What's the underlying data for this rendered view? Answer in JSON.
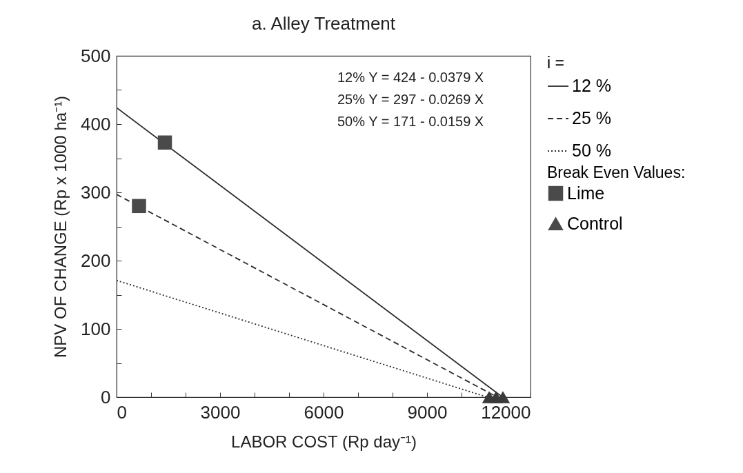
{
  "chart_data": {
    "type": "line",
    "title": "a. Alley Treatment",
    "xlabel": "LABOR COST (Rp day⁻¹)",
    "ylabel": "NPV OF CHANGE (Rp x 1000 ha⁻¹)",
    "legend_title": "i =",
    "legend": "right",
    "xlim": [
      0,
      12000
    ],
    "ylim": [
      0,
      500
    ],
    "xticks": [
      0,
      {
        "value": 1000,
        "label": null
      },
      {
        "value": 2000,
        "label": null
      },
      {
        "value": 3000,
        "label": "3000"
      },
      {
        "value": 4000,
        "label": null
      },
      {
        "value": 5000,
        "label": null
      },
      {
        "value": 6000,
        "label": "6000"
      },
      {
        "value": 7000,
        "label": null
      },
      {
        "value": 8000,
        "label": null
      },
      {
        "value": 9000,
        "label": "9000"
      },
      {
        "value": 10000,
        "label": null
      },
      {
        "value": 11000,
        "label": null
      },
      {
        "value": 12000,
        "label": "12000"
      }
    ],
    "yticks": [
      0,
      {
        "value": 50,
        "label": null
      },
      100,
      {
        "value": 150,
        "label": null
      },
      200,
      {
        "value": 250,
        "label": null
      },
      300,
      {
        "value": 350,
        "label": null
      },
      400,
      {
        "value": 450,
        "label": null
      },
      500
    ],
    "annotations": [
      "12%  Y = 424 - 0.0379 X",
      "25%  Y = 297 - 0.0269 X",
      "50%  Y = 171 - 0.0159 X",
      "Break Even Values:"
    ],
    "series": [
      {
        "name": "12 %",
        "type": "line",
        "line_style": "solid",
        "marker": "none",
        "color": "#2b2b2b",
        "x": [
          0,
          11190
        ],
        "values": [
          424,
          0
        ]
      },
      {
        "name": "25 %",
        "type": "line",
        "line_style": "dashed",
        "marker": "none",
        "color": "#2b2b2b",
        "x": [
          0,
          11040
        ],
        "values": [
          297,
          0
        ]
      },
      {
        "name": "50 %",
        "type": "line",
        "line_style": "dotted",
        "marker": "none",
        "color": "#2b2b2b",
        "x": [
          0,
          10750
        ],
        "values": [
          171,
          0
        ]
      },
      {
        "name": "Lime",
        "type": "scatter",
        "marker": "square",
        "color": "#4a4a4a",
        "x": [
          1400,
          650
        ],
        "values": [
          373,
          280
        ]
      },
      {
        "name": "Control",
        "type": "scatter",
        "marker": "triangle",
        "color": "#3a3a3a",
        "x": [
          10800,
          11000,
          11200
        ],
        "values": [
          0,
          0,
          0
        ]
      }
    ]
  }
}
